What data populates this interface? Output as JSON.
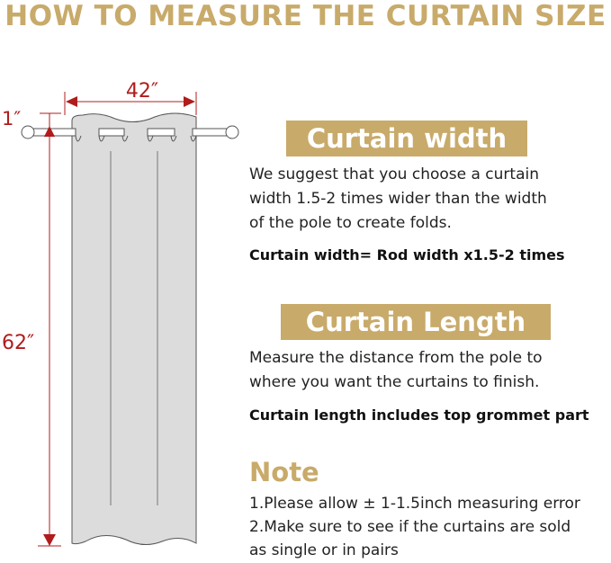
{
  "title": "HOW TO MEASURE THE CURTAIN SIZE",
  "diagram": {
    "width_label": "42″",
    "top_label": "1″",
    "length_label": "62″",
    "accent_color": "#b01c1c"
  },
  "width_section": {
    "heading": "Curtain width",
    "lines": [
      "We suggest that you choose a curtain",
      "width 1.5-2 times wider than the width",
      "of the pole to create folds."
    ],
    "formula": "Curtain width= Rod width x1.5-2 times"
  },
  "length_section": {
    "heading": "Curtain Length",
    "lines": [
      "Measure the distance from the pole to",
      "where you want the curtains to finish."
    ],
    "formula": "Curtain length includes top grommet part"
  },
  "note": {
    "heading": "Note",
    "lines": [
      "1.Please allow ± 1-1.5inch measuring error",
      "2.Make sure to see if the curtains are sold",
      "as single or in pairs"
    ]
  },
  "brand_color": "#c8aa6a"
}
